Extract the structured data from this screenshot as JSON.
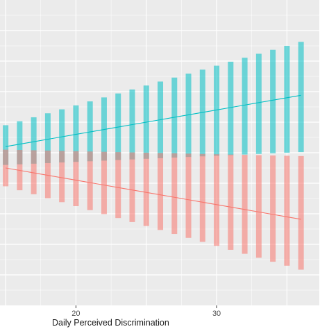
{
  "chart_data": {
    "type": "line",
    "xlabel": "Daily Perceived Discrimination",
    "ylabel": "",
    "title": "",
    "xlim": [
      14.6,
      37.3
    ],
    "ylim": [
      0,
      1
    ],
    "x_ticks": [
      20,
      30
    ],
    "grid": true,
    "background": "#ebebeb",
    "colors": {
      "teal": "#00bfc4",
      "red": "#f8766d"
    },
    "x": [
      15,
      16,
      17,
      18,
      19,
      20,
      21,
      22,
      23,
      24,
      25,
      26,
      27,
      28,
      29,
      30,
      31,
      32,
      33,
      34,
      35,
      36
    ],
    "series": [
      {
        "color": "#00bfc4",
        "fit": [
          0.52,
          0.528,
          0.536,
          0.544,
          0.552,
          0.56,
          0.568,
          0.576,
          0.584,
          0.592,
          0.6,
          0.608,
          0.616,
          0.624,
          0.632,
          0.64,
          0.648,
          0.656,
          0.664,
          0.672,
          0.68,
          0.688
        ],
        "upper": [
          0.59,
          0.603,
          0.616,
          0.629,
          0.642,
          0.655,
          0.668,
          0.681,
          0.694,
          0.707,
          0.72,
          0.733,
          0.746,
          0.759,
          0.772,
          0.785,
          0.798,
          0.811,
          0.824,
          0.837,
          0.85,
          0.863
        ],
        "lower": [
          0.46,
          0.462,
          0.464,
          0.466,
          0.468,
          0.47,
          0.472,
          0.474,
          0.476,
          0.478,
          0.48,
          0.482,
          0.484,
          0.486,
          0.488,
          0.49,
          0.492,
          0.494,
          0.496,
          0.498,
          0.5,
          0.502
        ]
      },
      {
        "color": "#f8766d",
        "fit": [
          0.45,
          0.442,
          0.434,
          0.426,
          0.418,
          0.41,
          0.402,
          0.394,
          0.386,
          0.378,
          0.37,
          0.362,
          0.354,
          0.346,
          0.338,
          0.33,
          0.322,
          0.314,
          0.306,
          0.298,
          0.29,
          0.282
        ],
        "upper": [
          0.51,
          0.509,
          0.508,
          0.507,
          0.506,
          0.505,
          0.504,
          0.503,
          0.502,
          0.501,
          0.5,
          0.499,
          0.498,
          0.497,
          0.496,
          0.495,
          0.494,
          0.493,
          0.492,
          0.491,
          0.49,
          0.489
        ],
        "lower": [
          0.39,
          0.377,
          0.364,
          0.351,
          0.338,
          0.325,
          0.312,
          0.299,
          0.286,
          0.273,
          0.26,
          0.247,
          0.234,
          0.221,
          0.208,
          0.195,
          0.182,
          0.169,
          0.156,
          0.143,
          0.13,
          0.117
        ]
      }
    ]
  }
}
